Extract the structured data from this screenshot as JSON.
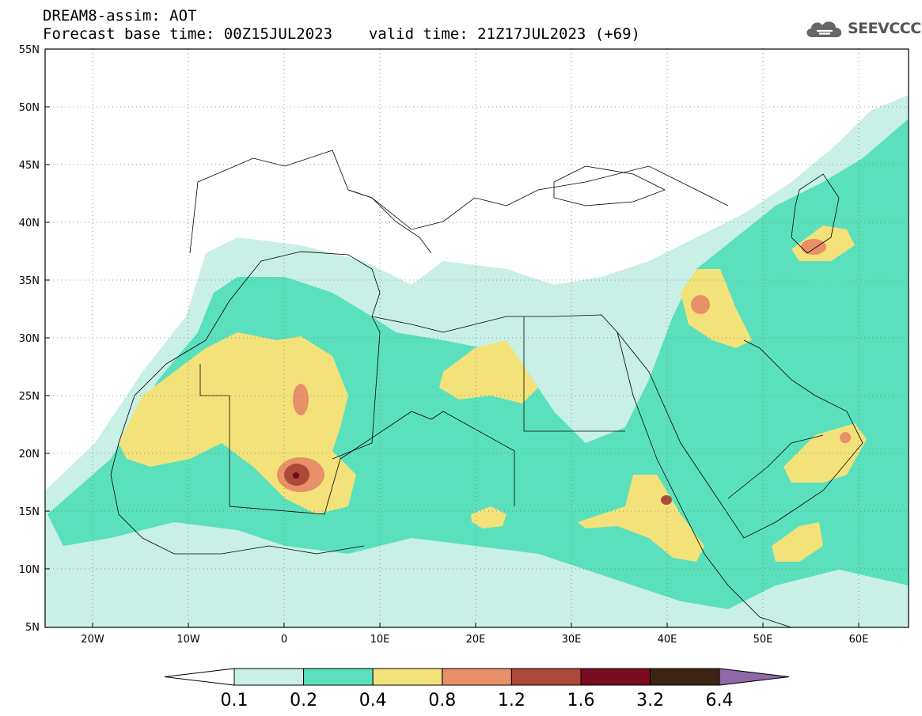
{
  "header": {
    "title_line1": "DREAM8-assim: AOT",
    "base_time_label": "Forecast base time: 00Z15JUL2023",
    "valid_time_label": "valid time: 21Z17JUL2023 (+69)"
  },
  "logo": {
    "text": "SEEVCCC",
    "icon": "cloud-logo-icon"
  },
  "map": {
    "lon_range": [
      -25,
      65
    ],
    "lat_range": [
      5,
      55
    ],
    "lat_ticks": [
      "5N",
      "10N",
      "15N",
      "20N",
      "25N",
      "30N",
      "35N",
      "40N",
      "45N",
      "50N",
      "55N"
    ],
    "lon_ticks": [
      "20W",
      "10W",
      "0",
      "10E",
      "20E",
      "30E",
      "40E",
      "50E",
      "60E"
    ],
    "grid": "dotted"
  },
  "colorbar": {
    "thresholds": [
      "0.1",
      "0.2",
      "0.4",
      "0.8",
      "1.2",
      "1.6",
      "3.2",
      "6.4"
    ],
    "colors": {
      "low": "#ffffff",
      "c1": "#c8f0e6",
      "c2": "#5be0bd",
      "c3": "#f3e27a",
      "c4": "#e89068",
      "c5": "#aa4a38",
      "c6": "#7a0a22",
      "c7": "#3c2412",
      "high": "#8e6aa8"
    }
  }
}
